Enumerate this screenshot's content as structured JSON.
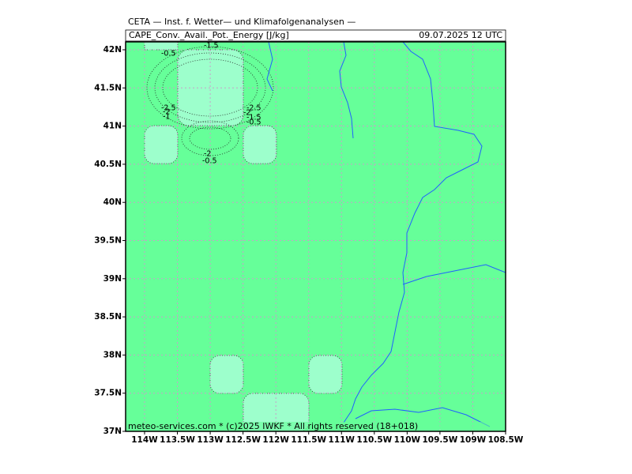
{
  "header": {
    "title": "CETA — Inst. f. Wetter— und Klimafolgenanalysen —",
    "subtitle": "CAPE_Conv._Avail._Pot._Energy [J/kg]",
    "date": "09.07.2025 12 UTC"
  },
  "map": {
    "lat_ticks": [
      {
        "value": 42,
        "label": "42N"
      },
      {
        "value": 41.5,
        "label": "41.5N"
      },
      {
        "value": 41,
        "label": "41N"
      },
      {
        "value": 40.5,
        "label": "40.5N"
      },
      {
        "value": 40,
        "label": "40N"
      },
      {
        "value": 39.5,
        "label": "39.5N"
      },
      {
        "value": 39,
        "label": "39N"
      },
      {
        "value": 38.5,
        "label": "38.5N"
      },
      {
        "value": 38,
        "label": "38N"
      },
      {
        "value": 37.5,
        "label": "37.5N"
      },
      {
        "value": 37,
        "label": "37N"
      }
    ],
    "lon_ticks": [
      {
        "value": -114,
        "label": "114W"
      },
      {
        "value": -113.5,
        "label": "113.5W"
      },
      {
        "value": -113,
        "label": "113W"
      },
      {
        "value": -112.5,
        "label": "112.5W"
      },
      {
        "value": -112,
        "label": "112W"
      },
      {
        "value": -111.5,
        "label": "111.5W"
      },
      {
        "value": -111,
        "label": "111W"
      },
      {
        "value": -110.5,
        "label": "110.5W"
      },
      {
        "value": -110,
        "label": "110W"
      },
      {
        "value": -109.5,
        "label": "109.5W"
      },
      {
        "value": -109,
        "label": "109W"
      },
      {
        "value": -108.5,
        "label": "108.5W"
      }
    ],
    "contour_labels": [
      "-1.5",
      "-0.5",
      "-2.5",
      "-2",
      "-1",
      "-2.5",
      "-2",
      "-1.5",
      "-0.5",
      "-2",
      "-0.5"
    ]
  },
  "footer": "meteo-services.com * (c)2025 IWKF * All rights reserved (18+018)"
}
